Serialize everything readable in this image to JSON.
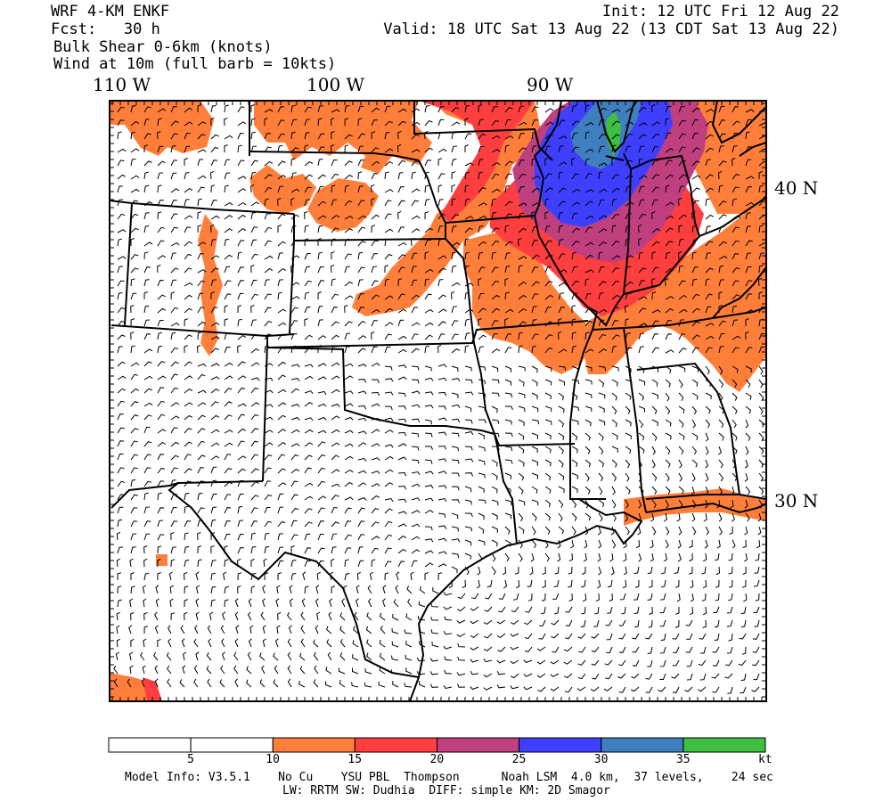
{
  "header": {
    "model": "WRF 4-KM ENKF",
    "fcst": "Fcst:   30 h",
    "field1": "Bulk Shear 0-6km (knots)",
    "field2": "Wind at 10m (full barb = 10kts)",
    "init": "Init: 12 UTC Fri 12 Aug 22",
    "valid": "Valid: 18 UTC Sat 13 Aug 22 (13 CDT Sat 13 Aug 22)"
  },
  "axes": {
    "lon_labels": [
      "110 W",
      "100 W",
      "90 W"
    ],
    "lat_labels": [
      "40 N",
      "30 N"
    ]
  },
  "colorbar": {
    "colors": [
      "#ffffff",
      "#ffffff",
      "#ff7f3a",
      "#ff3f3f",
      "#bf3f7f",
      "#3f3fff",
      "#3f7fbf",
      "#3fbf3f"
    ],
    "tick_labels": [
      "5",
      "10",
      "15",
      "20",
      "25",
      "30",
      "35",
      "kt"
    ]
  },
  "footer": {
    "line1": "Model Info: V3.5.1    No Cu    YSU PBL  Thompson      Noah LSM  4.0 km,  37 levels,    24 sec",
    "line2": "LW: RRTM SW: Dudhia  DIFF: simple KM: 2D Smagor"
  }
}
